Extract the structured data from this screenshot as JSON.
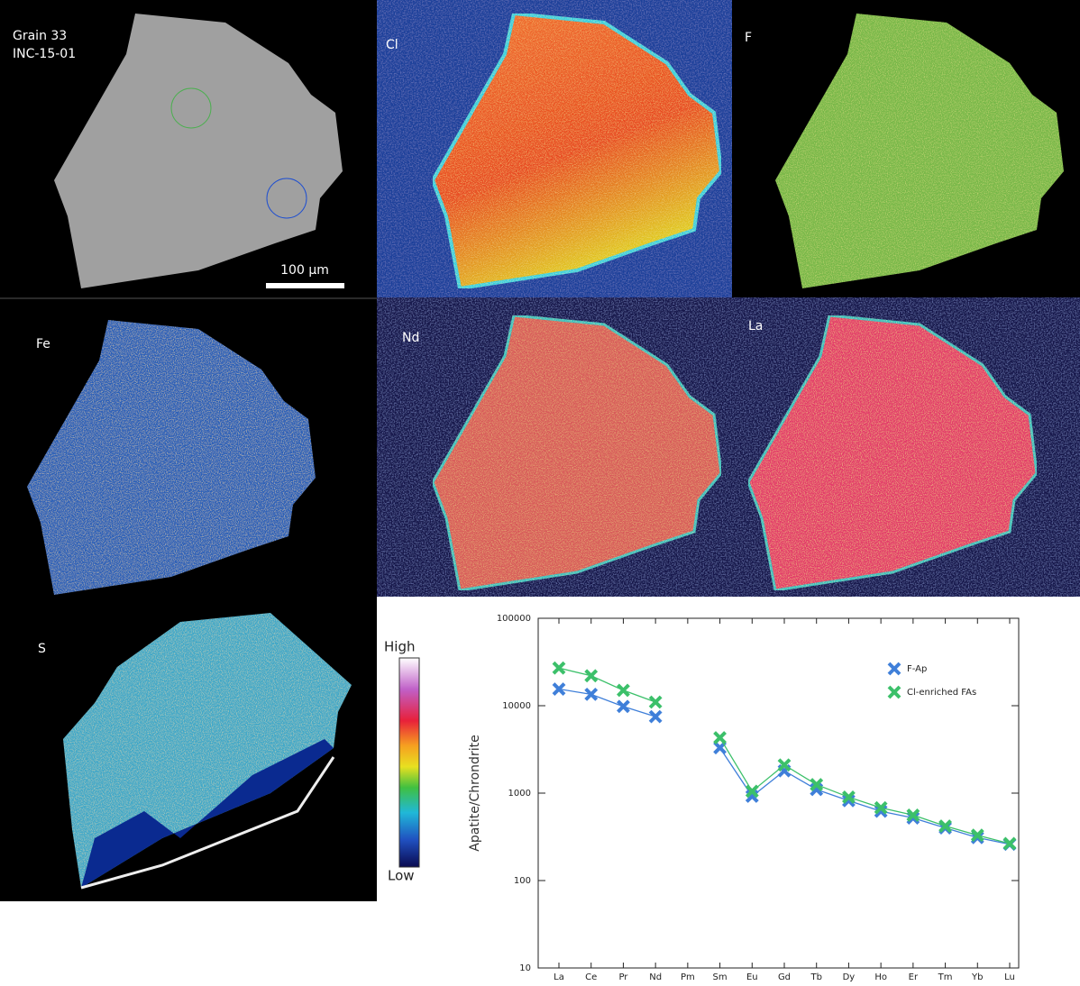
{
  "bse_panel": {
    "title_lines": [
      "Grain 33",
      "INC-15-01"
    ],
    "scale_bar": "100 µm"
  },
  "maps": {
    "cl": "Cl",
    "f": "F",
    "fe": "Fe",
    "nd": "Nd",
    "la": "La",
    "s": "S"
  },
  "color_scale": {
    "high": "High",
    "low": "Low"
  },
  "chart_data": {
    "type": "line",
    "y_label": "Apatite/Chrondrite",
    "categories": [
      "La",
      "Ce",
      "Pr",
      "Nd",
      "Pm",
      "Sm",
      "Eu",
      "Gd",
      "Tb",
      "Dy",
      "Ho",
      "Er",
      "Tm",
      "Yb",
      "Lu"
    ],
    "series": [
      {
        "name": "F-Ap",
        "color": "#3f7fd9",
        "values": [
          15500,
          13500,
          9800,
          7500,
          null,
          3300,
          920,
          1800,
          1100,
          820,
          620,
          520,
          400,
          310,
          260
        ]
      },
      {
        "name": "Cl-enriched FAs",
        "color": "#3cc06a",
        "values": [
          27000,
          22000,
          15000,
          11000,
          null,
          4300,
          1050,
          2100,
          1250,
          900,
          680,
          560,
          420,
          330,
          265
        ]
      }
    ],
    "yscale": "log",
    "ylim": [
      10,
      100000
    ],
    "yticks": [
      10,
      100,
      1000,
      10000,
      100000
    ],
    "legend": "upper right"
  }
}
